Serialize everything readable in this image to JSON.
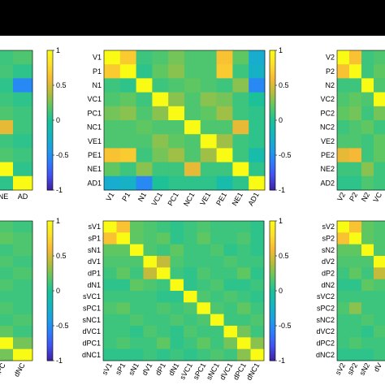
{
  "chart_data": {
    "type": "heatmap",
    "colormap": "parula",
    "colormap_stops": [
      "#3e26a8",
      "#4352f1",
      "#2c7ffb",
      "#1ca2e0",
      "#14b6bc",
      "#1cc197",
      "#5ec762",
      "#b4bc3c",
      "#f6b935",
      "#fddd2c",
      "#f9fb15"
    ],
    "panels": [
      {
        "id": "top-left",
        "row_labels": [
          "",
          "",
          "",
          "",
          "",
          "",
          "",
          "",
          "",
          ""
        ],
        "col_labels": [
          "NE",
          "AD"
        ],
        "clim": [
          -1,
          1
        ],
        "colorbar_ticks": [
          1,
          0.5,
          0,
          -0.5,
          -1
        ],
        "values": [
          [
            0.1,
            0.15
          ],
          [
            0.12,
            0.05
          ],
          [
            0.05,
            -0.55
          ],
          [
            0.1,
            0.05
          ],
          [
            0.15,
            0.1
          ],
          [
            0.55,
            0.1
          ],
          [
            0.1,
            0.05
          ],
          [
            0.15,
            0.1
          ],
          [
            1,
            0.05
          ],
          [
            0.05,
            1
          ]
        ]
      },
      {
        "id": "top-middle",
        "row_labels": [
          "V1",
          "P1",
          "N1",
          "VC1",
          "PC1",
          "NC1",
          "VE1",
          "PE1",
          "NE1",
          "AD1"
        ],
        "col_labels": [
          "V1",
          "P1",
          "N1",
          "VC1",
          "PC1",
          "NC1",
          "VE1",
          "PE1",
          "NE1",
          "AD1"
        ],
        "clim": [
          -1,
          1
        ],
        "colorbar_ticks": [
          1,
          0.5,
          0,
          -0.5,
          -1
        ],
        "values": [
          [
            1,
            0.7,
            0.1,
            0.15,
            0.25,
            0.15,
            0.15,
            0.65,
            0.2,
            -0.3
          ],
          [
            0.7,
            1,
            0.05,
            0.2,
            0.3,
            0.15,
            0.15,
            0.7,
            0.1,
            -0.25
          ],
          [
            0.1,
            0.05,
            1,
            0.1,
            0.15,
            0.2,
            0.15,
            0.1,
            0.3,
            -0.55
          ],
          [
            0.15,
            0.2,
            0.1,
            1,
            0.3,
            0.15,
            0.3,
            0.25,
            0.1,
            0.0
          ],
          [
            0.25,
            0.3,
            0.15,
            0.3,
            1,
            0.15,
            0.2,
            0.35,
            0.1,
            0.05
          ],
          [
            0.15,
            0.15,
            0.2,
            0.15,
            0.15,
            1,
            0.15,
            0.15,
            0.55,
            0.05
          ],
          [
            0.15,
            0.15,
            0.15,
            0.3,
            0.2,
            0.15,
            1,
            0.35,
            0.1,
            0.05
          ],
          [
            0.65,
            0.7,
            0.1,
            0.25,
            0.35,
            0.15,
            0.35,
            1,
            0.1,
            -0.1
          ],
          [
            0.2,
            0.1,
            0.3,
            0.1,
            0.1,
            0.55,
            0.1,
            0.1,
            1,
            0.05
          ],
          [
            -0.3,
            -0.25,
            -0.55,
            0.0,
            0.05,
            0.05,
            0.05,
            -0.1,
            0.05,
            1
          ]
        ]
      },
      {
        "id": "top-right",
        "row_labels": [
          "V2",
          "P2",
          "N2",
          "VC2",
          "PC2",
          "NC2",
          "VE2",
          "PE2",
          "NE2",
          "AD2"
        ],
        "col_labels": [
          "V2",
          "P2",
          "N2",
          "VC"
        ],
        "clim": [
          -1,
          1
        ],
        "values": [
          [
            1,
            0.65,
            0.1,
            0.15
          ],
          [
            0.65,
            1,
            0.1,
            0.2
          ],
          [
            0.1,
            0.1,
            1,
            0.15
          ],
          [
            0.15,
            0.2,
            0.15,
            1
          ],
          [
            0.2,
            0.25,
            0.1,
            0.25
          ],
          [
            0.1,
            0.15,
            0.2,
            0.1
          ],
          [
            0.15,
            0.15,
            0.1,
            0.2
          ],
          [
            0.55,
            0.6,
            0.1,
            0.2
          ],
          [
            0.1,
            0.1,
            0.3,
            0.1
          ],
          [
            0.05,
            0.05,
            0.15,
            0.1
          ]
        ]
      },
      {
        "id": "bottom-left",
        "row_labels": [
          "",
          "",
          "",
          "",
          "",
          "",
          "",
          "",
          "",
          "",
          "",
          ""
        ],
        "col_labels": [
          "dPC",
          "dNC"
        ],
        "clim": [
          -1,
          1
        ],
        "colorbar_ticks": [
          1,
          0.5,
          0,
          -0.5,
          -1
        ],
        "values": [
          [
            0.15,
            0.1
          ],
          [
            0.2,
            0.15
          ],
          [
            0.1,
            0.15
          ],
          [
            0.15,
            0.1
          ],
          [
            0.1,
            0.15
          ],
          [
            0.15,
            0.1
          ],
          [
            0.1,
            0.1
          ],
          [
            0.15,
            0.1
          ],
          [
            0.1,
            0.15
          ],
          [
            0.2,
            0.1
          ],
          [
            1,
            0.25
          ],
          [
            0.25,
            1
          ]
        ]
      },
      {
        "id": "bottom-middle",
        "row_labels": [
          "sV1",
          "sP1",
          "sN1",
          "dV1",
          "dP1",
          "dN1",
          "sVC1",
          "sPC1",
          "sNC1",
          "dVC1",
          "dPC1",
          "dNC1"
        ],
        "col_labels": [
          "sV1",
          "sP1",
          "sN1",
          "dV1",
          "dP1",
          "dN1",
          "sVC1",
          "sPC1",
          "sNC1",
          "dVC1",
          "dPC1",
          "dNC1"
        ],
        "clim": [
          -1,
          1
        ],
        "colorbar_ticks": [
          1,
          0.5,
          0,
          -0.5,
          -1
        ],
        "values": [
          [
            1,
            0.65,
            0.2,
            0.15,
            0.1,
            0.05,
            0.1,
            0.15,
            0.1,
            0.1,
            0.1,
            0.05
          ],
          [
            0.65,
            1,
            0.2,
            0.15,
            0.2,
            0.05,
            0.1,
            0.2,
            0.1,
            0.1,
            0.15,
            0.05
          ],
          [
            0.2,
            0.2,
            1,
            0.15,
            0.1,
            0.2,
            0.1,
            0.1,
            0.15,
            0.05,
            0.1,
            0.05
          ],
          [
            0.15,
            0.15,
            0.15,
            1,
            0.45,
            0.15,
            0.1,
            0.1,
            0.1,
            0.15,
            0.1,
            0.1
          ],
          [
            0.1,
            0.2,
            0.1,
            0.45,
            1,
            0.1,
            0.05,
            0.15,
            0.1,
            0.1,
            0.2,
            0.05
          ],
          [
            0.05,
            0.05,
            0.2,
            0.15,
            0.1,
            1,
            0.05,
            0.1,
            0.15,
            0.05,
            0.05,
            0.1
          ],
          [
            0.1,
            0.1,
            0.1,
            0.1,
            0.05,
            0.05,
            1,
            0.15,
            0.1,
            0.15,
            0.1,
            0.05
          ],
          [
            0.15,
            0.2,
            0.1,
            0.1,
            0.15,
            0.1,
            0.15,
            1,
            0.15,
            0.1,
            0.2,
            0.1
          ],
          [
            0.1,
            0.1,
            0.15,
            0.1,
            0.1,
            0.15,
            0.1,
            0.15,
            1,
            0.1,
            0.1,
            0.15
          ],
          [
            0.1,
            0.1,
            0.05,
            0.15,
            0.1,
            0.05,
            0.15,
            0.1,
            0.1,
            1,
            0.25,
            0.1
          ],
          [
            0.1,
            0.15,
            0.1,
            0.1,
            0.2,
            0.05,
            0.1,
            0.2,
            0.1,
            0.25,
            1,
            0.3
          ],
          [
            0.05,
            0.05,
            0.05,
            0.1,
            0.05,
            0.1,
            0.05,
            0.1,
            0.15,
            0.1,
            0.3,
            1
          ]
        ]
      },
      {
        "id": "bottom-right",
        "row_labels": [
          "sV2",
          "sP2",
          "sN2",
          "dV2",
          "dP2",
          "dN2",
          "sVC2",
          "sPC2",
          "sNC2",
          "dVC2",
          "dPC2",
          "dNC2"
        ],
        "col_labels": [
          "sV2",
          "sP2",
          "sN2",
          "dV"
        ],
        "clim": [
          -1,
          1
        ],
        "values": [
          [
            1,
            0.65,
            0.2,
            0.15
          ],
          [
            0.65,
            1,
            0.2,
            0.15
          ],
          [
            0.2,
            0.2,
            1,
            0.15
          ],
          [
            0.15,
            0.15,
            0.15,
            1
          ],
          [
            0.1,
            0.2,
            0.1,
            0.45
          ],
          [
            0.05,
            0.05,
            0.2,
            0.15
          ],
          [
            0.1,
            0.1,
            0.1,
            0.1
          ],
          [
            0.15,
            0.3,
            0.1,
            0.1
          ],
          [
            0.1,
            0.1,
            0.15,
            0.1
          ],
          [
            0.1,
            0.1,
            0.05,
            0.15
          ],
          [
            0.1,
            0.15,
            0.1,
            0.1
          ],
          [
            0.05,
            0.05,
            0.05,
            0.1
          ]
        ]
      }
    ]
  }
}
